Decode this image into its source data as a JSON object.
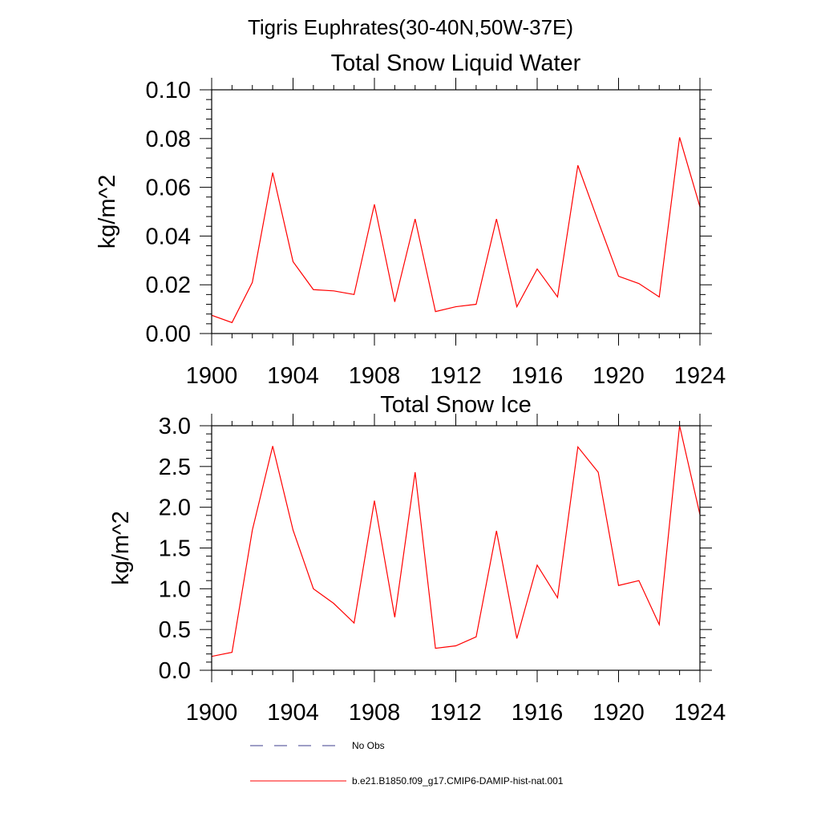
{
  "figure_title": "Tigris Euphrates(30-40N,50W-37E)",
  "chart_data": [
    {
      "type": "line",
      "title": "Total Snow Liquid Water",
      "xlabel": "",
      "ylabel": "kg/m^2",
      "xlim": [
        1900,
        1924
      ],
      "ylim": [
        0,
        0.1
      ],
      "x_ticks": [
        1900,
        1904,
        1908,
        1912,
        1916,
        1920,
        1924
      ],
      "y_ticks": [
        0,
        0.02,
        0.04,
        0.06,
        0.08,
        0.1
      ],
      "y_tick_labels": [
        "0.00",
        "0.02",
        "0.04",
        "0.06",
        "0.08",
        "0.10"
      ],
      "grid": false,
      "series": [
        {
          "name": "b.e21.B1850.f09_g17.CMIP6-DAMIP-hist-nat.001",
          "color": "#ff0000",
          "x": [
            1900,
            1901,
            1902,
            1903,
            1904,
            1905,
            1906,
            1907,
            1908,
            1909,
            1910,
            1911,
            1912,
            1913,
            1914,
            1915,
            1916,
            1917,
            1918,
            1919,
            1920,
            1921,
            1922,
            1923,
            1924
          ],
          "values": [
            0.0075,
            0.0045,
            0.021,
            0.066,
            0.0295,
            0.018,
            0.0175,
            0.016,
            0.053,
            0.013,
            0.047,
            0.009,
            0.011,
            0.012,
            0.047,
            0.011,
            0.0265,
            0.015,
            0.069,
            0.046,
            0.0235,
            0.0205,
            0.015,
            0.0805,
            0.052
          ]
        }
      ]
    },
    {
      "type": "line",
      "title": "Total Snow Ice",
      "xlabel": "",
      "ylabel": "kg/m^2",
      "xlim": [
        1900,
        1924
      ],
      "ylim": [
        0,
        3
      ],
      "x_ticks": [
        1900,
        1904,
        1908,
        1912,
        1916,
        1920,
        1924
      ],
      "y_ticks": [
        0,
        0.5,
        1,
        1.5,
        2,
        2.5,
        3
      ],
      "y_tick_labels": [
        "0.0",
        "0.5",
        "1.0",
        "1.5",
        "2.0",
        "2.5",
        "3.0"
      ],
      "grid": false,
      "series": [
        {
          "name": "b.e21.B1850.f09_g17.CMIP6-DAMIP-hist-nat.001",
          "color": "#ff0000",
          "x": [
            1900,
            1901,
            1902,
            1903,
            1904,
            1905,
            1906,
            1907,
            1908,
            1909,
            1910,
            1911,
            1912,
            1913,
            1914,
            1915,
            1916,
            1917,
            1918,
            1919,
            1920,
            1921,
            1922,
            1923,
            1924
          ],
          "values": [
            0.17,
            0.22,
            1.72,
            2.75,
            1.72,
            1.0,
            0.82,
            0.58,
            2.08,
            0.65,
            2.43,
            0.27,
            0.3,
            0.41,
            1.71,
            0.39,
            1.29,
            0.89,
            2.74,
            2.43,
            1.04,
            1.1,
            0.56,
            3.0,
            1.91
          ]
        }
      ]
    }
  ],
  "legend": {
    "placement": "bottom-center",
    "entries": [
      {
        "label": "No Obs",
        "style": "dashed",
        "color": "#3c3c8c"
      },
      {
        "label": "b.e21.B1850.f09_g17.CMIP6-DAMIP-hist-nat.001",
        "style": "solid",
        "color": "#ff0000"
      }
    ]
  }
}
